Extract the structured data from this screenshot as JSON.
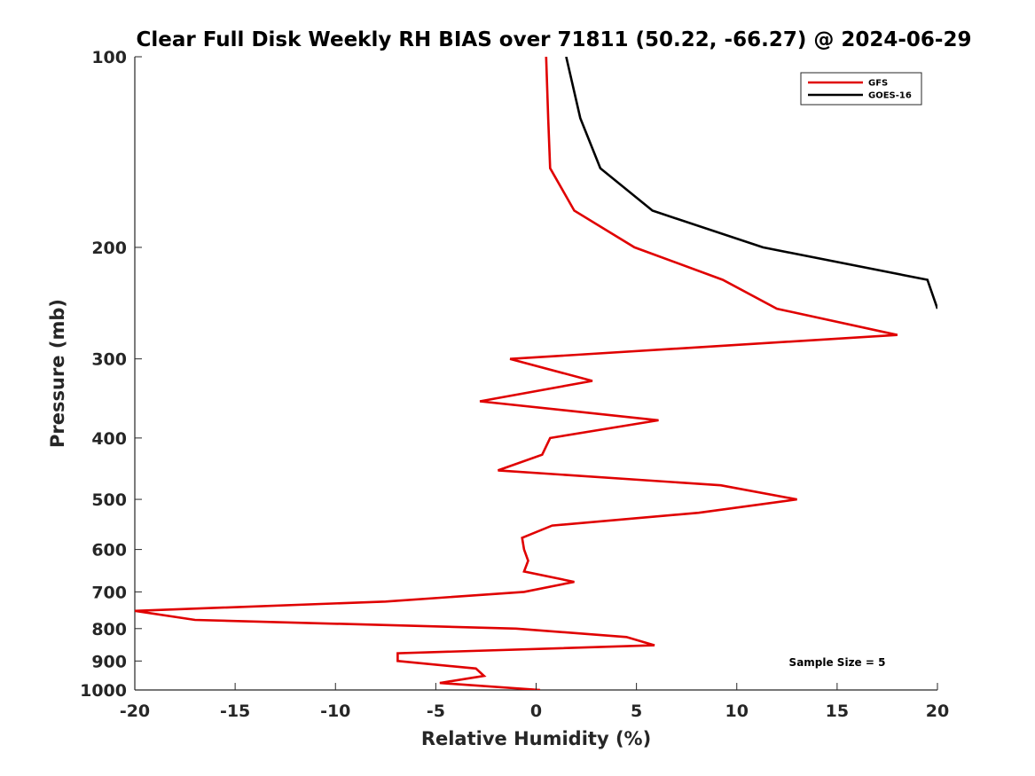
{
  "chart_data": {
    "type": "line",
    "title": "Clear Full Disk Weekly RH BIAS over 71811 (50.22, -66.27) @ 2024-06-29",
    "xlabel": "Relative Humidity (%)",
    "ylabel": "Pressure (mb)",
    "xlim": [
      -20,
      20
    ],
    "ylim": [
      100,
      1000
    ],
    "y_scale": "log",
    "y_reversed": true,
    "grid": false,
    "legend_position": "top-right",
    "x_ticks": [
      -20,
      -15,
      -10,
      -5,
      0,
      5,
      10,
      15,
      20
    ],
    "x_tick_labels": [
      "-20",
      "-15",
      "-10",
      "-5",
      "0",
      "5",
      "10",
      "15",
      "20"
    ],
    "y_ticks": [
      100,
      200,
      300,
      400,
      500,
      600,
      700,
      800,
      900,
      1000
    ],
    "y_tick_labels": [
      "100",
      "200",
      "300",
      "400",
      "500",
      "600",
      "700",
      "800",
      "900",
      "1000"
    ],
    "annotation": "Sample Size = 5",
    "series": [
      {
        "name": "GFS",
        "color": "#e00000",
        "points": [
          [
            0.5,
            100
          ],
          [
            0.6,
            125
          ],
          [
            0.7,
            150
          ],
          [
            1.9,
            175
          ],
          [
            4.9,
            200
          ],
          [
            9.3,
            225
          ],
          [
            12.0,
            250
          ],
          [
            18.0,
            275
          ],
          [
            -1.3,
            300
          ],
          [
            2.8,
            325
          ],
          [
            -2.8,
            350
          ],
          [
            6.1,
            375
          ],
          [
            0.7,
            400
          ],
          [
            0.3,
            425
          ],
          [
            -1.9,
            450
          ],
          [
            9.2,
            475
          ],
          [
            13.0,
            500
          ],
          [
            8.1,
            525
          ],
          [
            0.8,
            550
          ],
          [
            -0.7,
            575
          ],
          [
            -0.6,
            600
          ],
          [
            -0.4,
            625
          ],
          [
            -0.6,
            650
          ],
          [
            1.9,
            675
          ],
          [
            -0.6,
            700
          ],
          [
            -7.5,
            725
          ],
          [
            -20.0,
            750
          ],
          [
            -17.0,
            775
          ],
          [
            -1.0,
            800
          ],
          [
            4.5,
            825
          ],
          [
            5.9,
            850
          ],
          [
            -6.9,
            875
          ],
          [
            -6.9,
            900
          ],
          [
            -3.0,
            925
          ],
          [
            -2.6,
            950
          ],
          [
            -4.8,
            975
          ],
          [
            0.2,
            1000
          ]
        ]
      },
      {
        "name": "GOES-16",
        "color": "#000000",
        "points": [
          [
            1.5,
            100
          ],
          [
            2.2,
            125
          ],
          [
            3.2,
            150
          ],
          [
            5.8,
            175
          ],
          [
            11.3,
            200
          ],
          [
            19.5,
            225
          ],
          [
            20.0,
            250
          ]
        ]
      }
    ]
  }
}
